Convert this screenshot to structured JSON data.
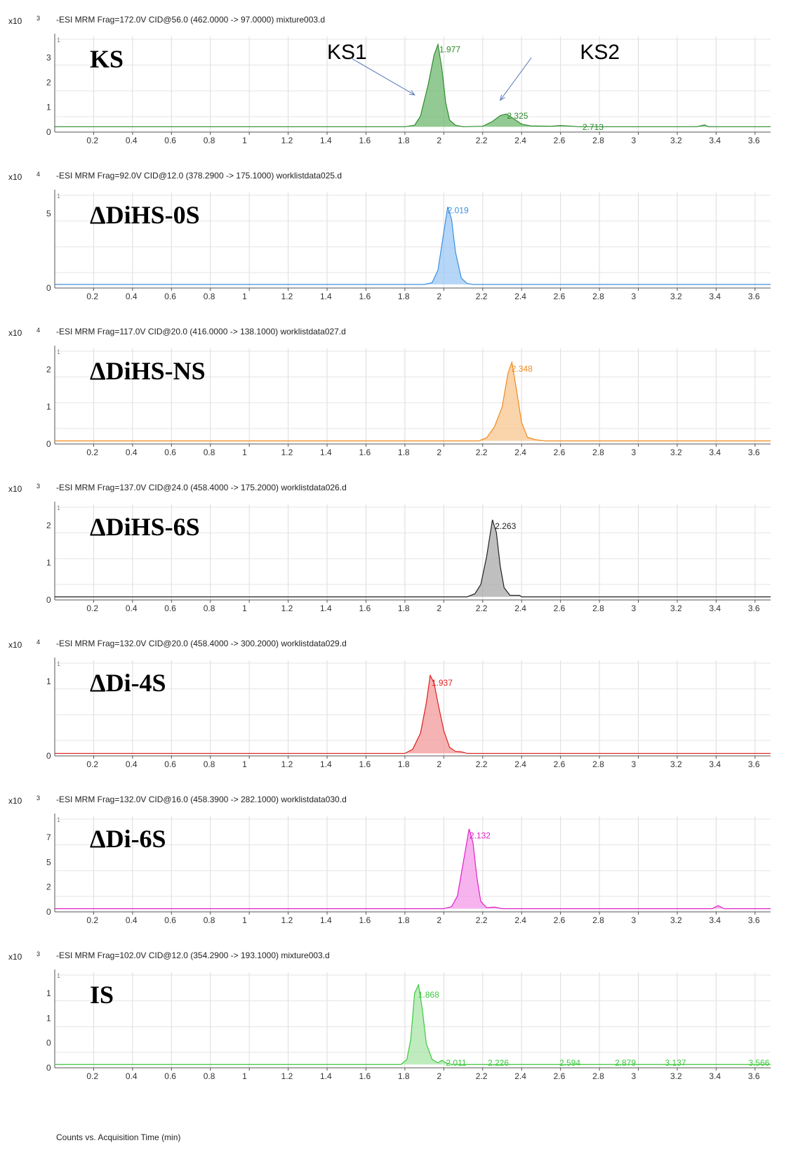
{
  "x_axis": {
    "title": "Counts vs. Acquisition Time (min)",
    "ticks": [
      "0.2",
      "0.4",
      "0.6",
      "0.8",
      "1",
      "1.2",
      "1.4",
      "1.6",
      "1.8",
      "2",
      "2.2",
      "2.4",
      "2.6",
      "2.8",
      "3",
      "3.2",
      "3.4",
      "3.6"
    ]
  },
  "chart_data": [
    {
      "type": "line",
      "title": "-ESI MRM Frag=172.0V CID@56.0 (462.0000 -> 97.0000) mixture003.d",
      "panel_label": "KS",
      "scale_base": "x10",
      "scale_exp": "3",
      "y_ticks": [
        "3",
        "2",
        "1",
        "0"
      ],
      "top_tick": "1",
      "color": "#2e8b2e",
      "fill": "#6fb86f",
      "xlim": [
        0,
        3.68
      ],
      "ylim": [
        -0.2,
        3.4
      ],
      "x": [
        0.0,
        1.8,
        1.85,
        1.88,
        1.92,
        1.95,
        1.97,
        1.99,
        2.01,
        2.03,
        2.06,
        2.1,
        2.2,
        2.25,
        2.29,
        2.32,
        2.36,
        2.4,
        2.45,
        2.55,
        2.6,
        2.7,
        2.8,
        3.3,
        3.34,
        3.36,
        3.38,
        3.68
      ],
      "values": [
        0.0,
        0.0,
        0.06,
        0.4,
        1.6,
        2.7,
        3.1,
        2.2,
        0.9,
        0.25,
        0.06,
        0.0,
        0.02,
        0.2,
        0.42,
        0.48,
        0.3,
        0.1,
        0.03,
        0.02,
        0.05,
        0.0,
        0.0,
        0.0,
        0.07,
        0.0,
        0.0,
        0.0
      ],
      "peak_labels": [
        {
          "x": 1.977,
          "y": 2.8,
          "text": "1.977"
        },
        {
          "x": 2.325,
          "y": 0.3,
          "text": "2.325"
        },
        {
          "x": 2.713,
          "y": -0.12,
          "text": "2.713"
        }
      ],
      "annotations": [
        {
          "text": "KS1",
          "x": 1.4,
          "y": 2.55,
          "ax1": 1.52,
          "ay1": 2.6,
          "ax2": 1.85,
          "ay2": 1.2
        },
        {
          "text": "KS2",
          "x": 2.7,
          "y": 2.55,
          "ax1": 2.45,
          "ay1": 2.6,
          "ax2": 2.29,
          "ay2": 1.0
        }
      ]
    },
    {
      "type": "line",
      "title": "-ESI MRM Frag=92.0V CID@12.0 (378.2900 -> 175.1000) worklistdata025.d",
      "panel_label": "ΔDiHS-0S",
      "scale_base": "x10",
      "scale_exp": "4",
      "y_ticks": [
        "5",
        "0"
      ],
      "top_tick": "1",
      "color": "#3b8fe0",
      "fill": "#9cc8f4",
      "xlim": [
        0,
        3.68
      ],
      "ylim": [
        -0.4,
        10.2
      ],
      "x": [
        0.0,
        1.9,
        1.94,
        1.97,
        2.0,
        2.02,
        2.04,
        2.06,
        2.09,
        2.12,
        2.15,
        3.68
      ],
      "values": [
        0.0,
        0.0,
        0.2,
        1.6,
        5.8,
        8.6,
        7.2,
        3.6,
        0.7,
        0.1,
        0.0,
        0.0
      ],
      "peak_labels": [
        {
          "x": 2.019,
          "y": 7.9,
          "text": "2.019"
        }
      ],
      "annotations": []
    },
    {
      "type": "line",
      "title": "-ESI MRM Frag=117.0V CID@20.0 (416.0000 -> 138.1000) worklistdata027.d",
      "panel_label": "ΔDiHS-NS",
      "scale_base": "x10",
      "scale_exp": "4",
      "y_ticks": [
        "2",
        "1",
        "0"
      ],
      "top_tick": "1",
      "color": "#f08a1e",
      "fill": "#f8c58f",
      "xlim": [
        0,
        3.68
      ],
      "ylim": [
        -0.1,
        3.0
      ],
      "x": [
        0.0,
        2.18,
        2.22,
        2.26,
        2.3,
        2.33,
        2.35,
        2.37,
        2.4,
        2.43,
        2.47,
        2.52,
        3.68
      ],
      "values": [
        0.0,
        0.0,
        0.1,
        0.45,
        1.1,
        2.2,
        2.55,
        1.8,
        0.6,
        0.12,
        0.04,
        0.0,
        0.0
      ],
      "peak_labels": [
        {
          "x": 2.348,
          "y": 2.25,
          "text": "2.348"
        }
      ],
      "annotations": []
    },
    {
      "type": "line",
      "title": "-ESI MRM Frag=137.0V CID@24.0 (458.4000 -> 175.2000) worklistdata026.d",
      "panel_label": "ΔDiHS-6S",
      "scale_base": "x10",
      "scale_exp": "3",
      "y_ticks": [
        "2",
        "1",
        "0"
      ],
      "top_tick": "1",
      "color": "#222222",
      "fill": "#aaaaaa",
      "xlim": [
        0,
        3.68
      ],
      "ylim": [
        -0.1,
        3.0
      ],
      "x": [
        0.0,
        2.12,
        2.16,
        2.19,
        2.22,
        2.25,
        2.27,
        2.29,
        2.31,
        2.34,
        2.39,
        2.4,
        3.68
      ],
      "values": [
        0.0,
        0.0,
        0.1,
        0.4,
        1.3,
        2.5,
        2.1,
        1.0,
        0.3,
        0.05,
        0.05,
        0.0,
        0.0
      ],
      "peak_labels": [
        {
          "x": 2.263,
          "y": 2.2,
          "text": "2.263"
        }
      ],
      "annotations": []
    },
    {
      "type": "line",
      "title": "-ESI MRM Frag=132.0V CID@20.0 (458.4000 -> 300.2000) worklistdata029.d",
      "panel_label": "ΔDi-4S",
      "scale_base": "x10",
      "scale_exp": "4",
      "y_ticks": [
        "1",
        "0"
      ],
      "top_tick": "1",
      "color": "#e01e1e",
      "fill": "#f39a9a",
      "xlim": [
        0,
        3.68
      ],
      "ylim": [
        -0.05,
        1.85
      ],
      "x": [
        0.0,
        1.8,
        1.84,
        1.88,
        1.91,
        1.93,
        1.95,
        1.97,
        2.0,
        2.03,
        2.06,
        2.09,
        2.12,
        3.68
      ],
      "values": [
        0.0,
        0.0,
        0.08,
        0.4,
        1.0,
        1.55,
        1.4,
        1.0,
        0.45,
        0.12,
        0.04,
        0.03,
        0.0,
        0.0
      ],
      "peak_labels": [
        {
          "x": 1.937,
          "y": 1.35,
          "text": "1.937"
        }
      ],
      "annotations": []
    },
    {
      "type": "line",
      "title": "-ESI MRM Frag=132.0V CID@16.0 (458.3900 -> 282.1000) worklistdata030.d",
      "panel_label": "ΔDi-6S",
      "scale_base": "x10",
      "scale_exp": "3",
      "y_ticks": [
        "7",
        "5",
        "2",
        "0"
      ],
      "top_tick": "1",
      "color": "#e020c8",
      "fill": "#f39ae8",
      "xlim": [
        0,
        3.68
      ],
      "ylim": [
        -0.3,
        8.8
      ],
      "x": [
        0.0,
        2.0,
        2.04,
        2.07,
        2.1,
        2.13,
        2.15,
        2.17,
        2.19,
        2.22,
        2.26,
        2.3,
        3.38,
        3.41,
        3.44,
        3.68
      ],
      "values": [
        0.0,
        0.0,
        0.2,
        1.2,
        4.4,
        7.6,
        6.3,
        3.0,
        0.7,
        0.1,
        0.15,
        0.0,
        0.0,
        0.3,
        0.0,
        0.0
      ],
      "peak_labels": [
        {
          "x": 2.132,
          "y": 6.7,
          "text": "2.132"
        }
      ],
      "annotations": []
    },
    {
      "type": "line",
      "title": "-ESI MRM Frag=102.0V CID@12.0 (354.2900 -> 193.1000) mixture003.d",
      "panel_label": "IS",
      "scale_base": "x10",
      "scale_exp": "3",
      "y_ticks": [
        "1",
        "1",
        "0",
        "0"
      ],
      "top_tick": "1",
      "color": "#3cc83c",
      "fill": "#a8e6a8",
      "xlim": [
        0,
        3.68
      ],
      "ylim": [
        -0.08,
        2.2
      ],
      "x": [
        0.0,
        1.78,
        1.81,
        1.83,
        1.85,
        1.87,
        1.89,
        1.91,
        1.94,
        1.97,
        1.99,
        2.01,
        2.04,
        3.68
      ],
      "values": [
        0.0,
        0.0,
        0.12,
        0.6,
        1.7,
        1.9,
        1.3,
        0.5,
        0.12,
        0.04,
        0.1,
        0.04,
        0.0,
        0.0
      ],
      "peak_labels": [
        {
          "x": 1.868,
          "y": 1.6,
          "text": "1.868"
        },
        {
          "x": 2.011,
          "y": -0.03,
          "text": "2.011"
        },
        {
          "x": 2.226,
          "y": -0.03,
          "text": "2.226"
        },
        {
          "x": 2.594,
          "y": -0.03,
          "text": "2.594"
        },
        {
          "x": 2.879,
          "y": -0.03,
          "text": "2.879"
        },
        {
          "x": 3.137,
          "y": -0.03,
          "text": "3.137"
        },
        {
          "x": 3.566,
          "y": -0.03,
          "text": "3.566"
        }
      ],
      "annotations": []
    }
  ]
}
